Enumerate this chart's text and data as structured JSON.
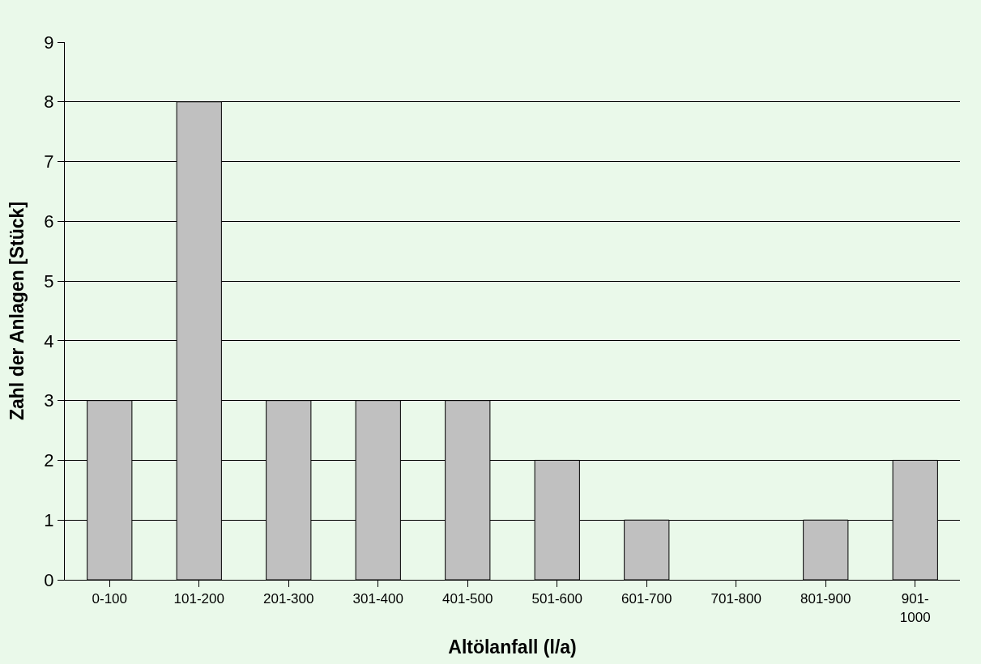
{
  "chart_data": {
    "type": "bar",
    "xlabel": "Altölanfall (l/a)",
    "ylabel": "Zahl der Anlagen [Stück]",
    "categories": [
      "0-100",
      "101-200",
      "201-300",
      "301-400",
      "401-500",
      "501-600",
      "601-700",
      "701-800",
      "801-900",
      "901-\n1000"
    ],
    "values": [
      3,
      8,
      3,
      3,
      3,
      2,
      1,
      0,
      1,
      2
    ],
    "color": "#c0c0c0",
    "ylim": [
      0,
      9
    ],
    "yticks": [
      0,
      1,
      2,
      3,
      4,
      5,
      6,
      7,
      8,
      9
    ],
    "grid": "y",
    "legend": false
  }
}
